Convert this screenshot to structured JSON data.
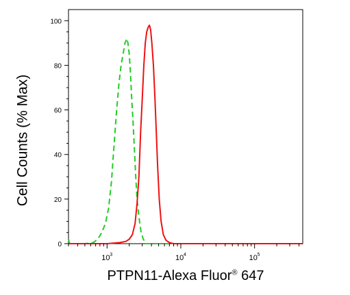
{
  "chart_data": {
    "type": "line",
    "xlabel": "PTPN11-Alexa Fluor",
    "xlabel_mark": "®",
    "xlabel_suffix": " 647",
    "ylabel": "Cell Counts (% Max)",
    "x_scale": "log",
    "xlim": [
      300,
      450000
    ],
    "ylim": [
      0,
      105
    ],
    "grid": false,
    "yticks": [
      0,
      20,
      40,
      60,
      80,
      100
    ],
    "xticks": [
      {
        "value": 1000,
        "base": "10",
        "exp": "3"
      },
      {
        "value": 10000,
        "base": "10",
        "exp": "4"
      },
      {
        "value": 100000,
        "base": "10",
        "exp": "5"
      }
    ],
    "series": [
      {
        "style": "dashed",
        "color": "#22cc22",
        "points": [
          [
            300,
            2
          ],
          [
            310,
            0
          ],
          [
            350,
            0
          ],
          [
            500,
            0
          ],
          [
            650,
            0.5
          ],
          [
            750,
            2
          ],
          [
            850,
            5
          ],
          [
            950,
            9
          ],
          [
            1050,
            16
          ],
          [
            1150,
            28
          ],
          [
            1250,
            45
          ],
          [
            1350,
            60
          ],
          [
            1450,
            72
          ],
          [
            1550,
            80
          ],
          [
            1650,
            85
          ],
          [
            1750,
            90
          ],
          [
            1850,
            92
          ],
          [
            1920,
            90
          ],
          [
            2000,
            85
          ],
          [
            2080,
            76
          ],
          [
            2150,
            66
          ],
          [
            2250,
            55
          ],
          [
            2350,
            42
          ],
          [
            2450,
            30
          ],
          [
            2550,
            20
          ],
          [
            2700,
            12
          ],
          [
            2900,
            5
          ],
          [
            3100,
            2
          ],
          [
            3400,
            0
          ],
          [
            4000,
            0
          ],
          [
            450000,
            0
          ]
        ]
      },
      {
        "style": "solid",
        "color": "#ee1111",
        "points": [
          [
            300,
            0
          ],
          [
            1000,
            0
          ],
          [
            1500,
            0.5
          ],
          [
            1800,
            1
          ],
          [
            2000,
            2
          ],
          [
            2200,
            4
          ],
          [
            2400,
            9
          ],
          [
            2550,
            18
          ],
          [
            2700,
            30
          ],
          [
            2850,
            50
          ],
          [
            3000,
            65
          ],
          [
            3150,
            80
          ],
          [
            3300,
            90
          ],
          [
            3450,
            95
          ],
          [
            3600,
            97
          ],
          [
            3750,
            98
          ],
          [
            3900,
            96
          ],
          [
            4050,
            90
          ],
          [
            4250,
            80
          ],
          [
            4450,
            66
          ],
          [
            4650,
            50
          ],
          [
            4850,
            35
          ],
          [
            5100,
            20
          ],
          [
            5400,
            10
          ],
          [
            5800,
            4
          ],
          [
            6300,
            1.5
          ],
          [
            7000,
            0.5
          ],
          [
            8000,
            0
          ],
          [
            450000,
            0
          ]
        ]
      }
    ]
  }
}
